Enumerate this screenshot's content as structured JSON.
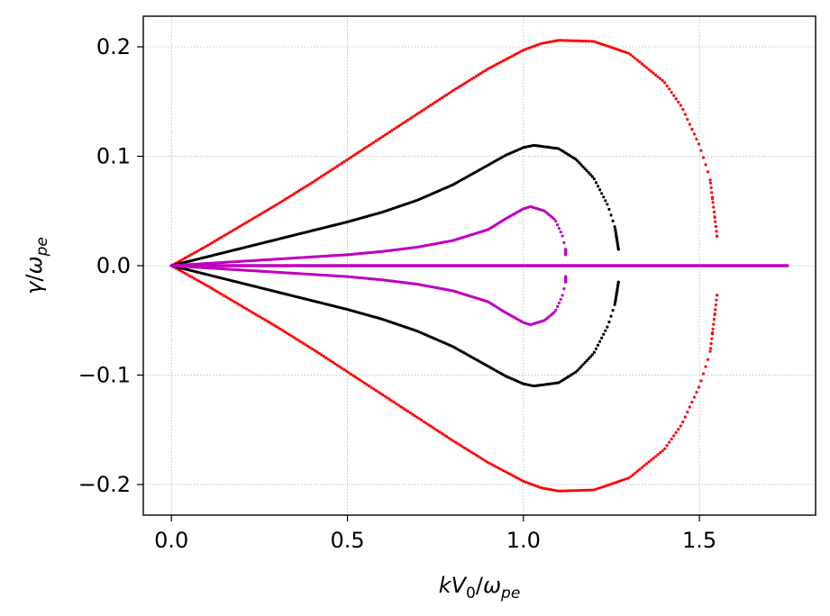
{
  "chart_data": {
    "type": "scatter",
    "title": "",
    "xlabel": "kV₀/ωpe",
    "ylabel": "γ/ωpe",
    "xlim": [
      -0.08,
      1.83
    ],
    "ylim": [
      -0.228,
      0.228
    ],
    "xticks": [
      0.0,
      0.5,
      1.0,
      1.5
    ],
    "xtick_labels": [
      "0.0",
      "0.5",
      "1.0",
      "1.5"
    ],
    "yticks": [
      0.2,
      0.1,
      0.0,
      -0.1,
      -0.2
    ],
    "ytick_labels": [
      "0.2",
      "0.1",
      "0.0",
      "−0.1",
      "−0.2"
    ],
    "grid": true,
    "legend": false,
    "x_max": 1.75,
    "series": [
      {
        "color": "#ff0000",
        "points": [
          [
            0.0,
            0.0
          ],
          [
            0.1,
            0.018
          ],
          [
            0.2,
            0.037
          ],
          [
            0.3,
            0.056
          ],
          [
            0.4,
            0.076
          ],
          [
            0.5,
            0.097
          ],
          [
            0.6,
            0.118
          ],
          [
            0.7,
            0.139
          ],
          [
            0.8,
            0.16
          ],
          [
            0.9,
            0.18
          ],
          [
            1.0,
            0.197
          ],
          [
            1.05,
            0.203
          ],
          [
            1.1,
            0.206
          ],
          [
            1.2,
            0.205
          ],
          [
            1.3,
            0.194
          ],
          [
            1.4,
            0.168
          ],
          [
            1.45,
            0.145
          ],
          [
            1.5,
            0.11
          ],
          [
            1.53,
            0.08
          ],
          [
            1.55,
            0.027
          ]
        ]
      },
      {
        "color": "#000000",
        "points": [
          [
            0.0,
            0.0
          ],
          [
            0.1,
            0.008
          ],
          [
            0.2,
            0.016
          ],
          [
            0.3,
            0.024
          ],
          [
            0.4,
            0.032
          ],
          [
            0.5,
            0.04
          ],
          [
            0.6,
            0.049
          ],
          [
            0.7,
            0.06
          ],
          [
            0.8,
            0.074
          ],
          [
            0.9,
            0.092
          ],
          [
            0.95,
            0.101
          ],
          [
            1.0,
            0.108
          ],
          [
            1.03,
            0.11
          ],
          [
            1.1,
            0.107
          ],
          [
            1.15,
            0.097
          ],
          [
            1.2,
            0.08
          ],
          [
            1.24,
            0.055
          ],
          [
            1.26,
            0.035
          ],
          [
            1.27,
            0.015
          ]
        ]
      },
      {
        "color": "#bf00bf",
        "points": [
          [
            0.0,
            0.0
          ],
          [
            0.1,
            0.002
          ],
          [
            0.2,
            0.004
          ],
          [
            0.3,
            0.006
          ],
          [
            0.4,
            0.008
          ],
          [
            0.5,
            0.01
          ],
          [
            0.6,
            0.013
          ],
          [
            0.7,
            0.017
          ],
          [
            0.8,
            0.023
          ],
          [
            0.9,
            0.033
          ],
          [
            0.95,
            0.043
          ],
          [
            1.0,
            0.052
          ],
          [
            1.02,
            0.054
          ],
          [
            1.06,
            0.05
          ],
          [
            1.09,
            0.042
          ],
          [
            1.11,
            0.028
          ],
          [
            1.12,
            0.015
          ],
          [
            1.12,
            0.01
          ]
        ]
      }
    ]
  }
}
